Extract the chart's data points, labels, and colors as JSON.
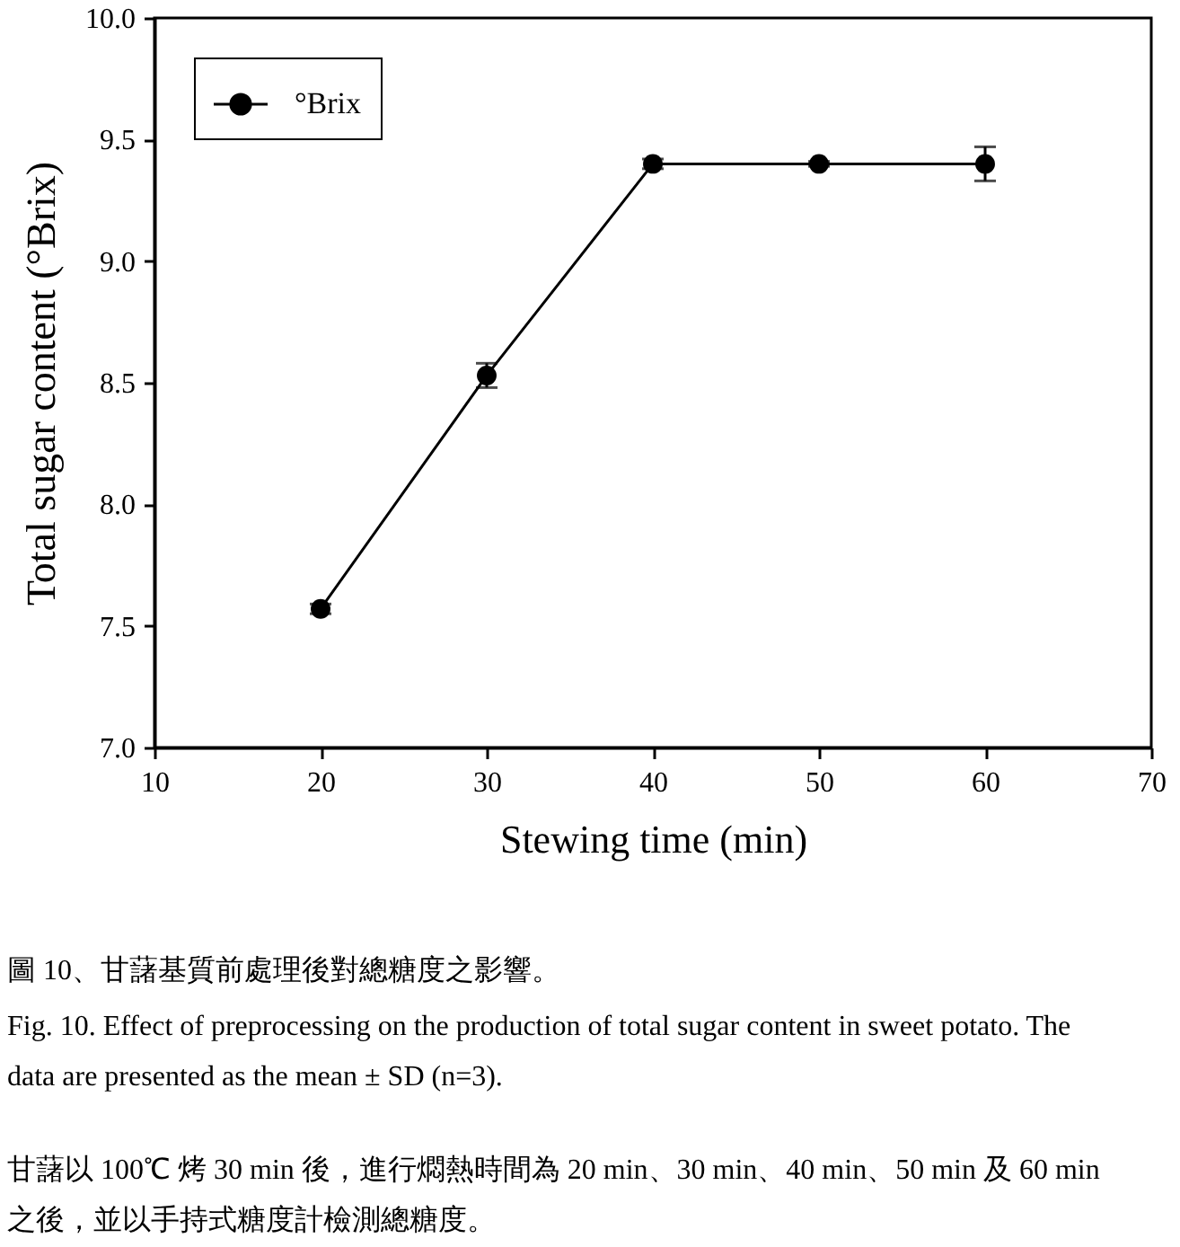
{
  "chart_data": {
    "type": "line",
    "xlabel": "Stewing time (min)",
    "ylabel": "Total sugar content (°Brix)",
    "x": [
      20,
      30,
      40,
      50,
      60
    ],
    "series": [
      {
        "name": "°Brix",
        "color": "#000000",
        "values": [
          7.57,
          8.53,
          9.4,
          9.4,
          9.4
        ],
        "errors": [
          0.02,
          0.05,
          0.02,
          0.01,
          0.07
        ]
      }
    ],
    "xlim": [
      10,
      70
    ],
    "ylim": [
      7.0,
      10.0
    ],
    "xticks": [
      10,
      20,
      30,
      40,
      50,
      60,
      70
    ],
    "yticks": [
      {
        "value": 7,
        "label": "7.0"
      },
      7.5,
      {
        "value": 8,
        "label": "8.0"
      },
      8.5,
      {
        "value": 9,
        "label": "9.0"
      },
      9.5,
      {
        "value": 10,
        "label": "10.0"
      }
    ],
    "grid": false,
    "legend": "top left",
    "marker": "circle",
    "line_style": "solid",
    "annotations": [
      "圖 10、甘藷基質前處理後對總糖度之影響。",
      "Fig. 10. Effect of preprocessing on the production of total sugar content in sweet potato. The data are presented as the mean ± SD (n=3).",
      "甘藷以 100℃ 烤 30 min 後，進行燜熱時間為 20 min、30 min、40 min、50 min 及 60 min 之後，並以手持式糖度計檢測總糖度。"
    ]
  }
}
